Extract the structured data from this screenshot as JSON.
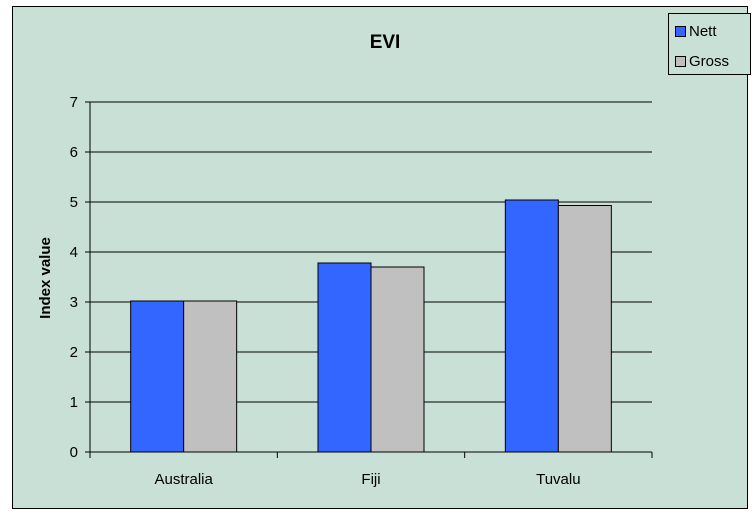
{
  "chart_data": {
    "type": "bar",
    "title": "EVI",
    "xlabel": "",
    "ylabel": "Index value",
    "categories": [
      "Australia",
      "Fiji",
      "Tuvalu"
    ],
    "series": [
      {
        "name": "Nett",
        "values": [
          3.02,
          3.78,
          5.04
        ],
        "color": "#3366ff"
      },
      {
        "name": "Gross",
        "values": [
          3.02,
          3.7,
          4.93
        ],
        "color": "#c0c0c0"
      }
    ],
    "ylim": [
      0,
      7
    ],
    "yticks": [
      "0",
      "1",
      "2",
      "3",
      "4",
      "5",
      "6",
      "7"
    ],
    "grid": true,
    "legend_position": "top-right"
  },
  "colors": {
    "background": "#c9e0d6",
    "gridline": "#000000"
  }
}
